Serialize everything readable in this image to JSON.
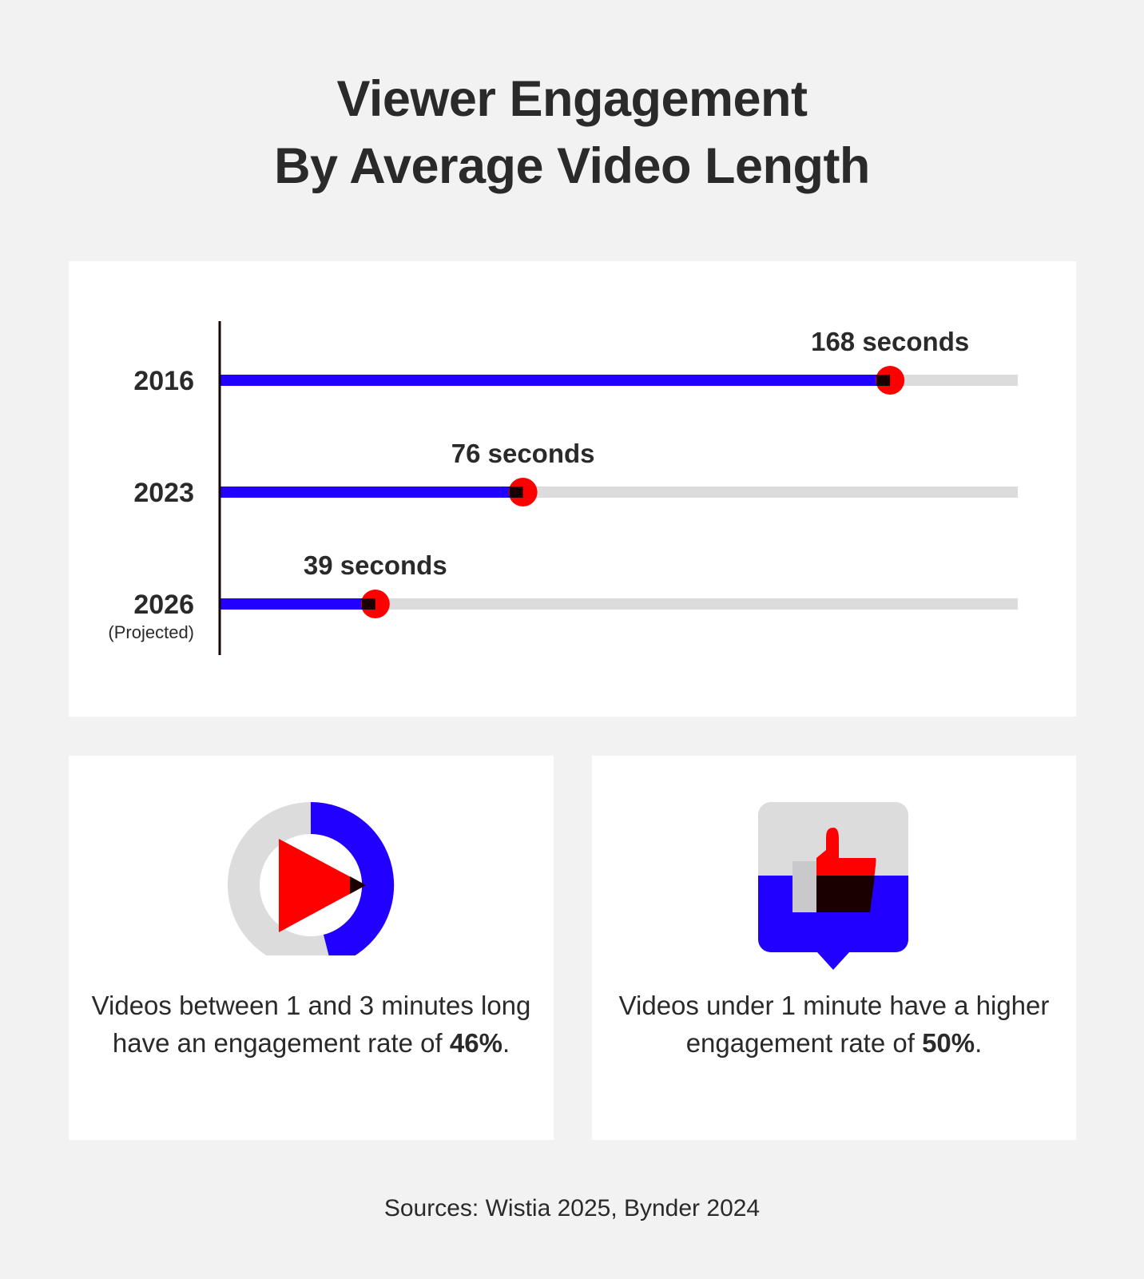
{
  "title": {
    "line1": "Viewer Engagement",
    "line2": "By Average Video Length"
  },
  "chart_data": {
    "type": "bar",
    "orientation": "horizontal",
    "categories": [
      "2016",
      "2023",
      "2026"
    ],
    "category_notes": [
      "",
      "",
      "(Projected)"
    ],
    "values": [
      168,
      76,
      39
    ],
    "value_labels": [
      "168 seconds",
      "76 seconds",
      "39 seconds"
    ],
    "unit": "seconds",
    "xlim": [
      0,
      200
    ],
    "grid": false,
    "legend": "none",
    "colors": {
      "bar": "#2200ff",
      "track": "#dcdcdc",
      "marker": "#ff0000",
      "marker_inner": "#1a0000",
      "axis": "#1a0000"
    }
  },
  "stats": {
    "left": {
      "icon": "play-donut-icon",
      "text_before": "Videos between 1 and 3 minutes long have an engagement rate of ",
      "highlight": "46%",
      "text_after": ".",
      "percent": 46,
      "colors": {
        "ring": "#2200ff",
        "ring_bg": "#dcdcdc",
        "play": "#ff0000"
      }
    },
    "right": {
      "icon": "thumbs-up-bubble-icon",
      "text_before": "Videos under 1 minute have a higher engagement rate of ",
      "highlight": "50%",
      "text_after": ".",
      "percent": 50,
      "colors": {
        "bubble_fill": "#2200ff",
        "bubble_bg": "#dcdcdc",
        "thumb": "#ff0000"
      }
    }
  },
  "source": "Sources: Wistia 2025, Bynder 2024"
}
